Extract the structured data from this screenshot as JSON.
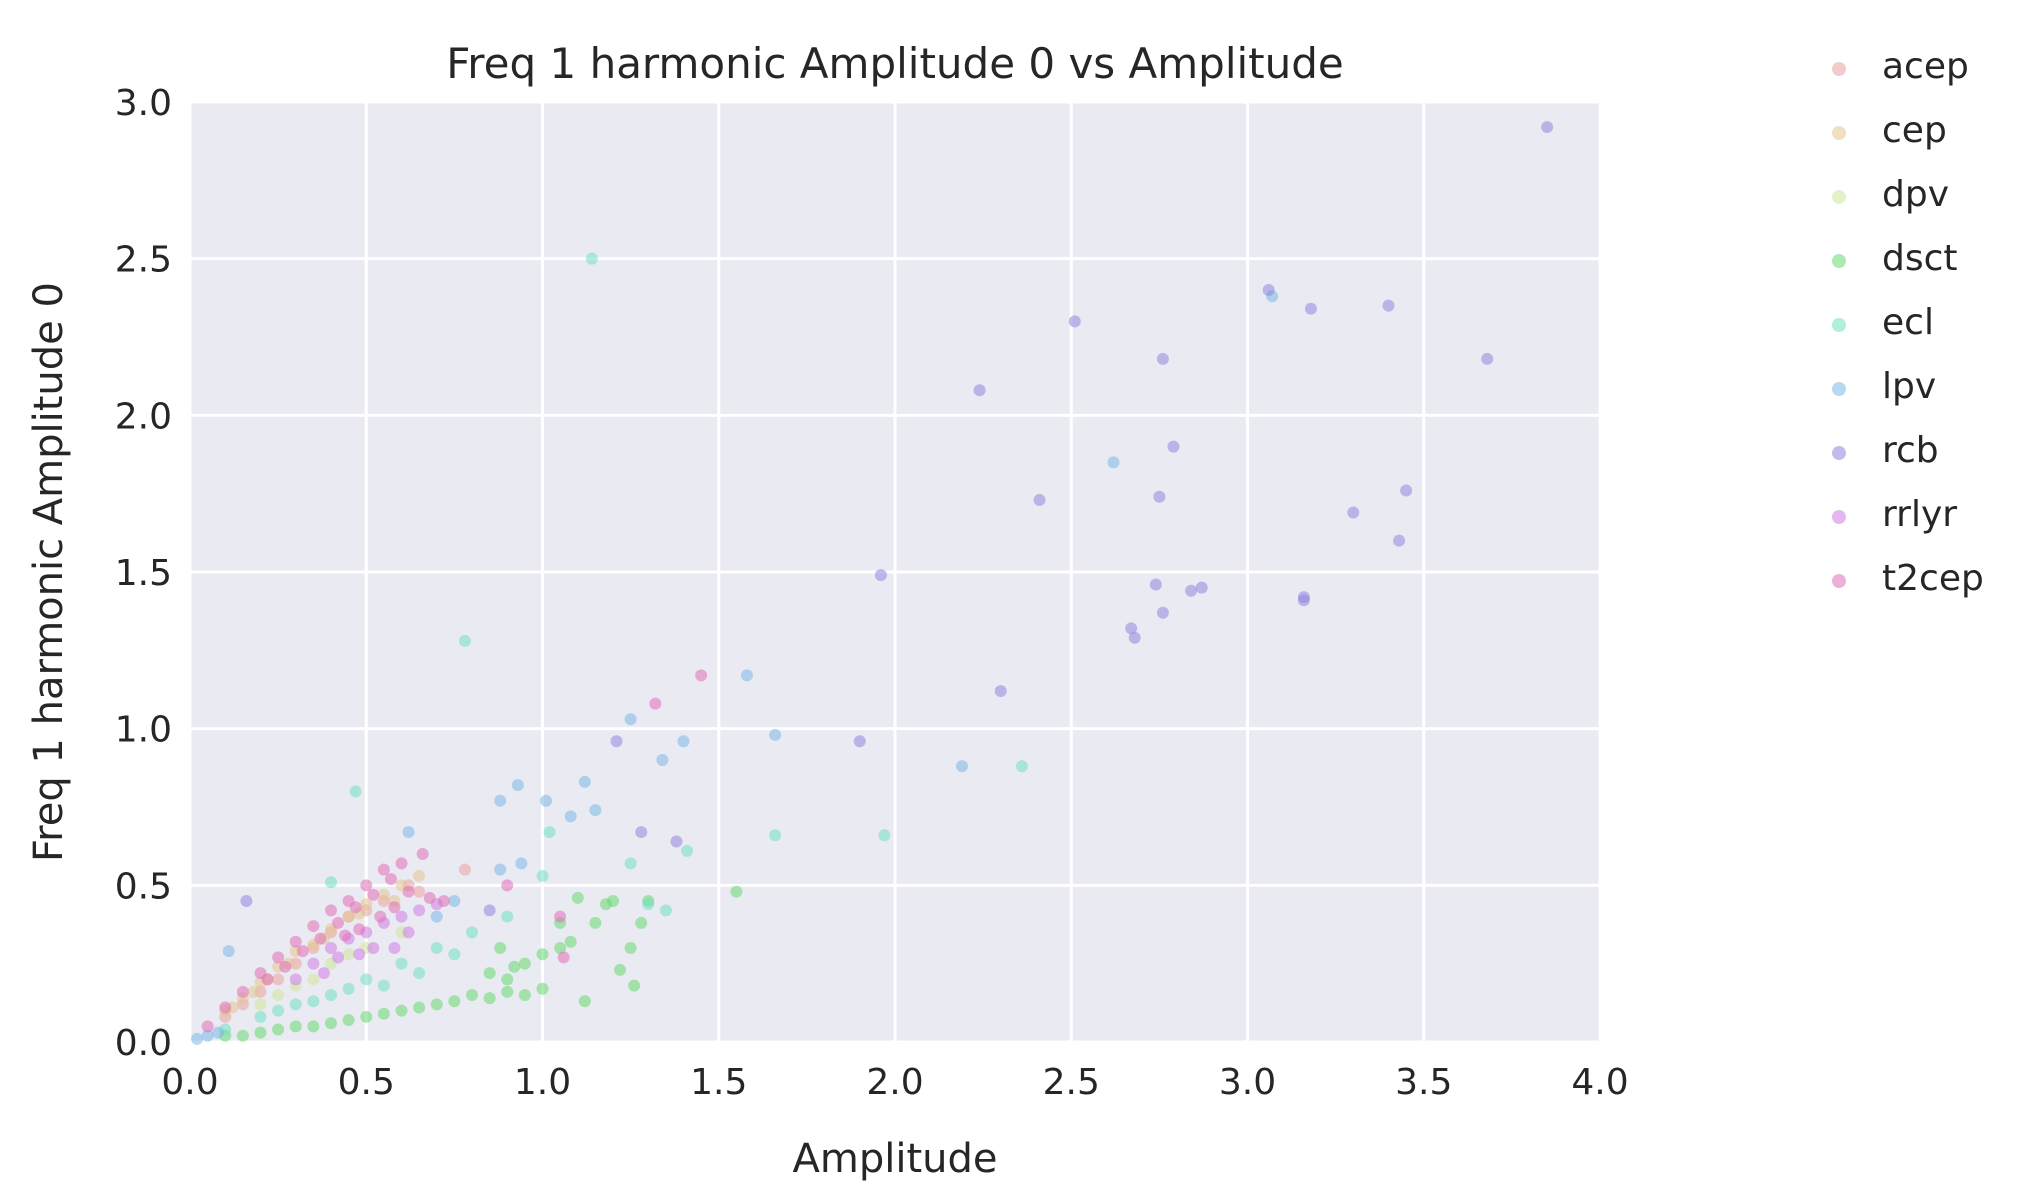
{
  "chart_data": {
    "type": "scatter",
    "title": "Freq 1 harmonic Amplitude 0 vs Amplitude",
    "xlabel": "Amplitude",
    "ylabel": "Freq 1 harmonic Amplitude 0",
    "xlim": [
      0.0,
      4.0
    ],
    "ylim": [
      0.0,
      3.0
    ],
    "xticks": [
      "0.0",
      "0.5",
      "1.0",
      "1.5",
      "2.0",
      "2.5",
      "3.0",
      "3.5",
      "4.0"
    ],
    "yticks": [
      "0.0",
      "0.5",
      "1.0",
      "1.5",
      "2.0",
      "2.5",
      "3.0"
    ],
    "grid": true,
    "legend_position": "outside-right",
    "background": "#eaeaf2",
    "series": [
      {
        "name": "acep",
        "color": "#e8a3a0",
        "points": [
          [
            0.78,
            0.55
          ],
          [
            0.45,
            0.4
          ],
          [
            0.55,
            0.45
          ],
          [
            0.62,
            0.5
          ],
          [
            0.35,
            0.3
          ],
          [
            0.25,
            0.2
          ],
          [
            0.5,
            0.42
          ],
          [
            0.65,
            0.48
          ],
          [
            0.4,
            0.35
          ],
          [
            0.3,
            0.25
          ],
          [
            0.2,
            0.16
          ],
          [
            0.15,
            0.12
          ],
          [
            0.1,
            0.08
          ]
        ]
      },
      {
        "name": "cep",
        "color": "#e3c58e",
        "points": [
          [
            0.1,
            0.1
          ],
          [
            0.15,
            0.14
          ],
          [
            0.2,
            0.19
          ],
          [
            0.25,
            0.24
          ],
          [
            0.3,
            0.29
          ],
          [
            0.35,
            0.31
          ],
          [
            0.4,
            0.36
          ],
          [
            0.45,
            0.4
          ],
          [
            0.5,
            0.44
          ],
          [
            0.55,
            0.47
          ],
          [
            0.6,
            0.5
          ],
          [
            0.65,
            0.53
          ],
          [
            0.22,
            0.2
          ],
          [
            0.28,
            0.25
          ],
          [
            0.38,
            0.33
          ],
          [
            0.48,
            0.41
          ],
          [
            0.58,
            0.45
          ],
          [
            0.12,
            0.11
          ],
          [
            0.18,
            0.16
          ]
        ]
      },
      {
        "name": "dpv",
        "color": "#cde69a",
        "points": [
          [
            0.2,
            0.12
          ],
          [
            0.3,
            0.18
          ],
          [
            0.4,
            0.25
          ],
          [
            0.5,
            0.3
          ],
          [
            0.6,
            0.35
          ],
          [
            0.35,
            0.2
          ],
          [
            0.45,
            0.28
          ],
          [
            0.25,
            0.15
          ]
        ]
      },
      {
        "name": "dsct",
        "color": "#66d96f",
        "points": [
          [
            1.55,
            0.48
          ],
          [
            1.3,
            0.45
          ],
          [
            1.28,
            0.38
          ],
          [
            1.25,
            0.3
          ],
          [
            1.2,
            0.45
          ],
          [
            1.15,
            0.38
          ],
          [
            1.1,
            0.46
          ],
          [
            1.05,
            0.3
          ],
          [
            1.0,
            0.28
          ],
          [
            0.95,
            0.25
          ],
          [
            0.9,
            0.2
          ],
          [
            0.85,
            0.22
          ],
          [
            1.22,
            0.23
          ],
          [
            1.26,
            0.18
          ],
          [
            1.12,
            0.13
          ],
          [
            1.05,
            0.38
          ],
          [
            0.8,
            0.15
          ],
          [
            0.75,
            0.13
          ],
          [
            0.7,
            0.12
          ],
          [
            0.65,
            0.11
          ],
          [
            0.6,
            0.1
          ],
          [
            0.55,
            0.09
          ],
          [
            0.5,
            0.08
          ],
          [
            0.45,
            0.07
          ],
          [
            0.4,
            0.06
          ],
          [
            0.35,
            0.05
          ],
          [
            0.3,
            0.05
          ],
          [
            0.25,
            0.04
          ],
          [
            0.2,
            0.03
          ],
          [
            0.15,
            0.02
          ],
          [
            0.1,
            0.02
          ],
          [
            0.9,
            0.16
          ],
          [
            1.0,
            0.17
          ],
          [
            0.85,
            0.14
          ],
          [
            0.95,
            0.15
          ],
          [
            1.08,
            0.32
          ],
          [
            1.18,
            0.44
          ],
          [
            0.88,
            0.3
          ],
          [
            0.92,
            0.24
          ]
        ]
      },
      {
        "name": "ecl",
        "color": "#6fe0c3",
        "points": [
          [
            1.14,
            2.5
          ],
          [
            0.78,
            1.28
          ],
          [
            0.47,
            0.8
          ],
          [
            2.36,
            0.88
          ],
          [
            1.97,
            0.66
          ],
          [
            1.66,
            0.66
          ],
          [
            1.41,
            0.61
          ],
          [
            1.25,
            0.57
          ],
          [
            1.02,
            0.67
          ],
          [
            1.0,
            0.53
          ],
          [
            0.4,
            0.51
          ],
          [
            1.35,
            0.42
          ],
          [
            1.3,
            0.44
          ],
          [
            0.9,
            0.4
          ],
          [
            0.7,
            0.3
          ],
          [
            0.6,
            0.25
          ],
          [
            0.5,
            0.2
          ],
          [
            0.4,
            0.15
          ],
          [
            0.3,
            0.12
          ],
          [
            0.2,
            0.08
          ],
          [
            0.1,
            0.04
          ],
          [
            0.8,
            0.35
          ],
          [
            0.65,
            0.22
          ],
          [
            0.55,
            0.18
          ],
          [
            0.75,
            0.28
          ],
          [
            0.45,
            0.17
          ],
          [
            0.35,
            0.13
          ],
          [
            0.25,
            0.1
          ]
        ]
      },
      {
        "name": "lpv",
        "color": "#7ab8e6",
        "points": [
          [
            3.07,
            2.38
          ],
          [
            2.62,
            1.85
          ],
          [
            1.58,
            1.17
          ],
          [
            1.66,
            0.98
          ],
          [
            1.25,
            1.03
          ],
          [
            1.4,
            0.96
          ],
          [
            1.34,
            0.9
          ],
          [
            2.19,
            0.88
          ],
          [
            1.12,
            0.83
          ],
          [
            0.93,
            0.82
          ],
          [
            0.88,
            0.77
          ],
          [
            1.01,
            0.77
          ],
          [
            1.15,
            0.74
          ],
          [
            1.08,
            0.72
          ],
          [
            0.62,
            0.67
          ],
          [
            0.88,
            0.55
          ],
          [
            0.94,
            0.57
          ],
          [
            0.11,
            0.29
          ],
          [
            0.75,
            0.45
          ],
          [
            0.7,
            0.4
          ],
          [
            0.05,
            0.02
          ],
          [
            0.02,
            0.01
          ],
          [
            0.08,
            0.03
          ]
        ]
      },
      {
        "name": "rcb",
        "color": "#8f85e0",
        "points": [
          [
            3.85,
            2.92
          ],
          [
            3.06,
            2.4
          ],
          [
            3.4,
            2.35
          ],
          [
            3.18,
            2.34
          ],
          [
            2.51,
            2.3
          ],
          [
            2.76,
            2.18
          ],
          [
            3.68,
            2.18
          ],
          [
            2.24,
            2.08
          ],
          [
            2.79,
            1.9
          ],
          [
            3.45,
            1.76
          ],
          [
            2.75,
            1.74
          ],
          [
            2.41,
            1.73
          ],
          [
            3.3,
            1.69
          ],
          [
            3.43,
            1.6
          ],
          [
            1.96,
            1.49
          ],
          [
            2.74,
            1.46
          ],
          [
            2.84,
            1.44
          ],
          [
            2.87,
            1.45
          ],
          [
            3.16,
            1.42
          ],
          [
            3.16,
            1.41
          ],
          [
            2.76,
            1.37
          ],
          [
            2.67,
            1.32
          ],
          [
            2.68,
            1.29
          ],
          [
            2.3,
            1.12
          ],
          [
            1.9,
            0.96
          ],
          [
            1.21,
            0.96
          ],
          [
            1.28,
            0.67
          ],
          [
            1.38,
            0.64
          ],
          [
            0.16,
            0.45
          ],
          [
            0.85,
            0.42
          ]
        ]
      },
      {
        "name": "rrlyr",
        "color": "#d07be6",
        "points": [
          [
            0.3,
            0.2
          ],
          [
            0.35,
            0.25
          ],
          [
            0.4,
            0.3
          ],
          [
            0.45,
            0.33
          ],
          [
            0.5,
            0.35
          ],
          [
            0.55,
            0.38
          ],
          [
            0.6,
            0.4
          ],
          [
            0.65,
            0.42
          ],
          [
            0.7,
            0.44
          ],
          [
            0.38,
            0.22
          ],
          [
            0.48,
            0.28
          ],
          [
            0.58,
            0.3
          ],
          [
            0.62,
            0.35
          ],
          [
            0.52,
            0.3
          ],
          [
            0.42,
            0.27
          ]
        ]
      },
      {
        "name": "t2cep",
        "color": "#e06fb8",
        "points": [
          [
            1.45,
            1.17
          ],
          [
            1.32,
            1.08
          ],
          [
            0.9,
            0.5
          ],
          [
            1.05,
            0.4
          ],
          [
            1.06,
            0.27
          ],
          [
            0.66,
            0.6
          ],
          [
            0.6,
            0.57
          ],
          [
            0.55,
            0.55
          ],
          [
            0.5,
            0.5
          ],
          [
            0.45,
            0.45
          ],
          [
            0.4,
            0.42
          ],
          [
            0.35,
            0.37
          ],
          [
            0.3,
            0.32
          ],
          [
            0.25,
            0.27
          ],
          [
            0.2,
            0.22
          ],
          [
            0.15,
            0.16
          ],
          [
            0.1,
            0.11
          ],
          [
            0.05,
            0.05
          ],
          [
            0.57,
            0.52
          ],
          [
            0.52,
            0.47
          ],
          [
            0.47,
            0.43
          ],
          [
            0.42,
            0.38
          ],
          [
            0.37,
            0.33
          ],
          [
            0.32,
            0.29
          ],
          [
            0.27,
            0.24
          ],
          [
            0.22,
            0.2
          ],
          [
            0.62,
            0.48
          ],
          [
            0.58,
            0.43
          ],
          [
            0.68,
            0.46
          ],
          [
            0.72,
            0.45
          ],
          [
            0.48,
            0.36
          ],
          [
            0.44,
            0.34
          ],
          [
            0.54,
            0.4
          ]
        ]
      }
    ]
  }
}
